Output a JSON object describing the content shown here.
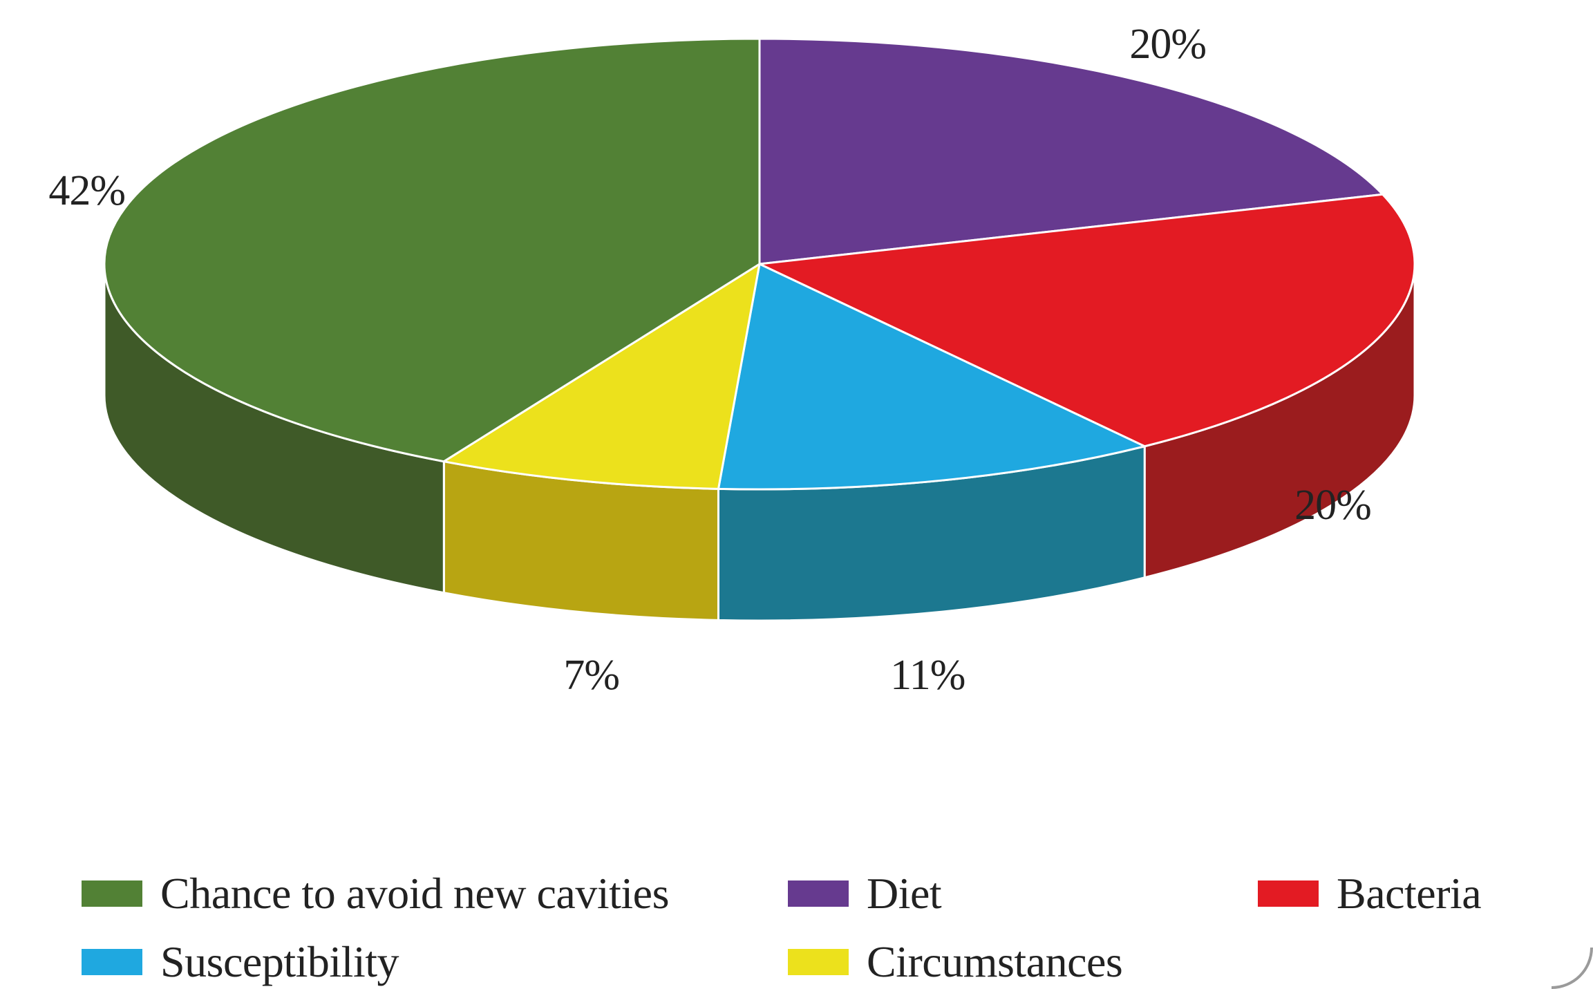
{
  "chart_data": {
    "type": "pie",
    "style": "3d",
    "slices": [
      {
        "label": "Diet",
        "value": 20,
        "value_label": "20%",
        "color": "#663a8f",
        "side_color": "#4a2868"
      },
      {
        "label": "Bacteria",
        "value": 20,
        "value_label": "20%",
        "color": "#e31b23",
        "side_color": "#9b1c1e"
      },
      {
        "label": "Susceptibility",
        "value": 11,
        "value_label": "11%",
        "color": "#1fa8e0",
        "side_color": "#1c7890"
      },
      {
        "label": "Circumstances",
        "value": 7,
        "value_label": "7%",
        "color": "#ece11c",
        "side_color": "#b8a512"
      },
      {
        "label": "Chance to avoid new cavities",
        "value": 42,
        "value_label": "42%",
        "color": "#528135",
        "side_color": "#3f5a28"
      }
    ],
    "legend": {
      "placement": "bottom",
      "entries": [
        {
          "label": "Chance to avoid new cavities",
          "color": "#528135"
        },
        {
          "label": "Diet",
          "color": "#663a8f"
        },
        {
          "label": "Bacteria",
          "color": "#e31b23"
        },
        {
          "label": "Susceptibility",
          "color": "#1fa8e0"
        },
        {
          "label": "Circumstances",
          "color": "#ece11c"
        }
      ]
    }
  }
}
